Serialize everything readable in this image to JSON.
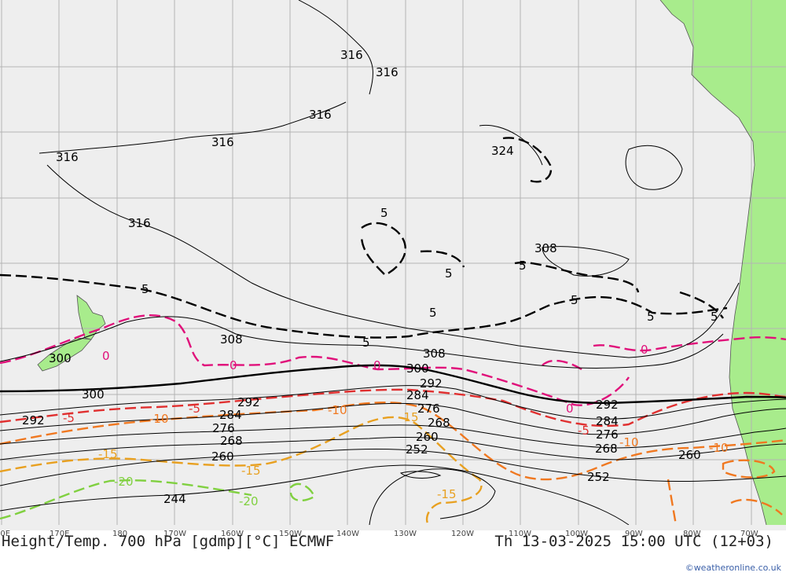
{
  "map": {
    "title_left": "Height/Temp. 700 hPa [gdmp][°C] ECMWF",
    "title_right": "Th 13-03-2025 15:00 UTC (12+03)",
    "credit": "©weatheronline.co.uk",
    "longitude_ticks": [
      "60E",
      "170E",
      "180",
      "170W",
      "160W",
      "150W",
      "140W",
      "130W",
      "120W",
      "110W",
      "100W",
      "90W",
      "80W",
      "70W"
    ],
    "height_contour_labels": [
      "316",
      "316",
      "316",
      "316",
      "316",
      "316",
      "324",
      "308",
      "308",
      "308",
      "300",
      "300",
      "300",
      "292",
      "292",
      "292",
      "292",
      "284",
      "284",
      "284",
      "276",
      "276",
      "276",
      "268",
      "268",
      "268",
      "260",
      "260",
      "260",
      "252",
      "252",
      "244"
    ],
    "temperature_labels": [
      "5",
      "5",
      "5",
      "5",
      "5",
      "5",
      "5",
      "5",
      "5",
      "0",
      "0",
      "0",
      "0",
      "0",
      "-5",
      "-5",
      "-5",
      "-10",
      "-10",
      "-10",
      "-10",
      "-15",
      "-15",
      "-15",
      "-15",
      "-20",
      "-20"
    ],
    "colors": {
      "sea": "#eeeeee",
      "land": "#a8ec8c",
      "grid": "#b4b4b4",
      "height_contour": "#000000",
      "temp_5": "#000000",
      "temp_0": "#e0107a",
      "temp_minus5": "#e03030",
      "temp_minus10": "#f07820",
      "temp_minus15": "#e8a020",
      "temp_minus20": "#80d040"
    }
  }
}
